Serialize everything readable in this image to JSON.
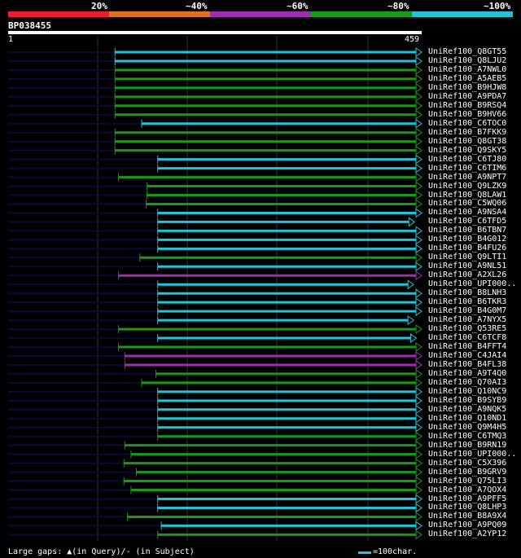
{
  "legend": {
    "labels": [
      "20%",
      "~40%",
      "~60%",
      "~80%",
      "~100%"
    ],
    "colors": [
      "#e8202e",
      "#e07020",
      "#9b2fae",
      "#189a18",
      "#22c3d6"
    ]
  },
  "query": {
    "id": "BP038455",
    "start": "1",
    "end": "459",
    "length": 459
  },
  "footer": {
    "large_gaps": "Large gaps: ▲(in Query)/- (in Subject)",
    "scale": "=100char."
  },
  "colors": {
    "cyan": "#22c3d6",
    "green": "#189a18",
    "purple": "#9b2fae",
    "track": "#0a0a3a"
  },
  "hits": [
    {
      "label": "UniRef100_Q8GT55",
      "color": "cyan",
      "start": 120,
      "end": 459
    },
    {
      "label": "UniRef100_Q8LJU2",
      "color": "cyan",
      "start": 120,
      "end": 459
    },
    {
      "label": "UniRef100_A7NWL0",
      "color": "green",
      "start": 120,
      "end": 459
    },
    {
      "label": "UniRef100_A5AEB5",
      "color": "green",
      "start": 120,
      "end": 459
    },
    {
      "label": "UniRef100_B9HJW8",
      "color": "green",
      "start": 120,
      "end": 459
    },
    {
      "label": "UniRef100_A9PDA7",
      "color": "green",
      "start": 120,
      "end": 459
    },
    {
      "label": "UniRef100_B9RSQ4",
      "color": "green",
      "start": 120,
      "end": 459
    },
    {
      "label": "UniRef100_B9HV66",
      "color": "green",
      "start": 120,
      "end": 459
    },
    {
      "label": "UniRef100_C6TOC0",
      "color": "cyan",
      "start": 150,
      "end": 459
    },
    {
      "label": "UniRef100_B7FKK9",
      "color": "green",
      "start": 120,
      "end": 459
    },
    {
      "label": "UniRef100_Q8GT38",
      "color": "green",
      "start": 120,
      "end": 459
    },
    {
      "label": "UniRef100_Q9SKY5",
      "color": "green",
      "start": 120,
      "end": 459
    },
    {
      "label": "UniRef100_C6TJ80",
      "color": "cyan",
      "start": 168,
      "end": 459
    },
    {
      "label": "UniRef100_C6TIM6",
      "color": "cyan",
      "start": 168,
      "end": 459
    },
    {
      "label": "UniRef100_A9NPT7",
      "color": "green",
      "start": 124,
      "end": 459
    },
    {
      "label": "UniRef100_Q9LZK9",
      "color": "green",
      "start": 156,
      "end": 459
    },
    {
      "label": "UniRef100_Q8LAW1",
      "color": "green",
      "start": 156,
      "end": 459
    },
    {
      "label": "UniRef100_C5WQ06",
      "color": "green",
      "start": 155,
      "end": 459
    },
    {
      "label": "UniRef100_A9NSA4",
      "color": "cyan",
      "start": 168,
      "end": 459
    },
    {
      "label": "UniRef100_C6TFD5",
      "color": "cyan",
      "start": 168,
      "end": 451
    },
    {
      "label": "UniRef100_B6TBN7",
      "color": "cyan",
      "start": 168,
      "end": 459
    },
    {
      "label": "UniRef100_B4G012",
      "color": "cyan",
      "start": 168,
      "end": 459
    },
    {
      "label": "UniRef100_B4FU26",
      "color": "cyan",
      "start": 168,
      "end": 459
    },
    {
      "label": "UniRef100_Q9LTI1",
      "color": "green",
      "start": 148,
      "end": 459
    },
    {
      "label": "UniRef100_A9NL51",
      "color": "cyan",
      "start": 168,
      "end": 459
    },
    {
      "label": "UniRef100_A2XL26",
      "color": "purple",
      "start": 124,
      "end": 459
    },
    {
      "label": "UniRef100_UPI000..",
      "color": "cyan",
      "start": 168,
      "end": 450
    },
    {
      "label": "UniRef100_B8LNH3",
      "color": "cyan",
      "start": 168,
      "end": 459
    },
    {
      "label": "UniRef100_B6TKR3",
      "color": "cyan",
      "start": 168,
      "end": 459
    },
    {
      "label": "UniRef100_B4G0M7",
      "color": "cyan",
      "start": 168,
      "end": 459
    },
    {
      "label": "UniRef100_A7NYX5",
      "color": "cyan",
      "start": 168,
      "end": 450
    },
    {
      "label": "UniRef100_Q53RE5",
      "color": "green",
      "start": 124,
      "end": 459
    },
    {
      "label": "UniRef100_C6TCF8",
      "color": "cyan",
      "start": 168,
      "end": 453
    },
    {
      "label": "UniRef100_B4FFT4",
      "color": "green",
      "start": 124,
      "end": 459
    },
    {
      "label": "UniRef100_C4JAI4",
      "color": "purple",
      "start": 131,
      "end": 459
    },
    {
      "label": "UniRef100_B4FL38",
      "color": "purple",
      "start": 131,
      "end": 459
    },
    {
      "label": "UniRef100_A9T4Q0",
      "color": "green",
      "start": 166,
      "end": 459
    },
    {
      "label": "UniRef100_Q70AI3",
      "color": "green",
      "start": 150,
      "end": 459
    },
    {
      "label": "UniRef100_Q10NC9",
      "color": "cyan",
      "start": 168,
      "end": 459
    },
    {
      "label": "UniRef100_B9SYB9",
      "color": "cyan",
      "start": 168,
      "end": 459
    },
    {
      "label": "UniRef100_A9NQK5",
      "color": "cyan",
      "start": 168,
      "end": 459
    },
    {
      "label": "UniRef100_Q10ND1",
      "color": "cyan",
      "start": 168,
      "end": 459
    },
    {
      "label": "UniRef100_Q9M4H5",
      "color": "cyan",
      "start": 168,
      "end": 459
    },
    {
      "label": "UniRef100_C6TMQ3",
      "color": "green",
      "start": 168,
      "end": 459
    },
    {
      "label": "UniRef100_B9RN19",
      "color": "green",
      "start": 131,
      "end": 459
    },
    {
      "label": "UniRef100_UPI000..",
      "color": "green",
      "start": 138,
      "end": 459
    },
    {
      "label": "UniRef100_C5X396",
      "color": "green",
      "start": 130,
      "end": 459
    },
    {
      "label": "UniRef100_B9GRV9",
      "color": "green",
      "start": 144,
      "end": 459
    },
    {
      "label": "UniRef100_Q75LI3",
      "color": "green",
      "start": 130,
      "end": 459
    },
    {
      "label": "UniRef100_A7QOX4",
      "color": "green",
      "start": 138,
      "end": 459
    },
    {
      "label": "UniRef100_A9PFF5",
      "color": "cyan",
      "start": 168,
      "end": 459
    },
    {
      "label": "UniRef100_Q8LHP3",
      "color": "cyan",
      "start": 168,
      "end": 459
    },
    {
      "label": "UniRef100_B8A9X4",
      "color": "green",
      "start": 134,
      "end": 459
    },
    {
      "label": "UniRef100_A9PQ09",
      "color": "cyan",
      "start": 172,
      "end": 459
    },
    {
      "label": "UniRef100_A2YP12",
      "color": "green",
      "start": 168,
      "end": 459
    }
  ]
}
